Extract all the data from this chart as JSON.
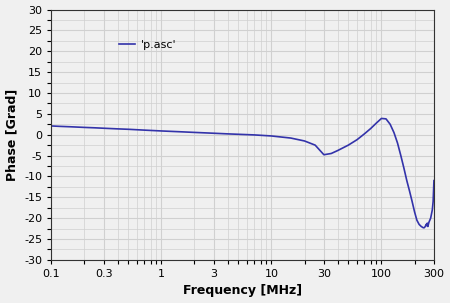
{
  "title": "",
  "xlabel": "Frequency [MHz]",
  "ylabel": "Phase [Grad]",
  "legend_label": "'p.asc'",
  "xmin": 0.1,
  "xmax": 300,
  "ymin": -30,
  "ymax": 30,
  "yticks": [
    -30,
    -25,
    -20,
    -15,
    -10,
    -5,
    0,
    5,
    10,
    15,
    20,
    25,
    30
  ],
  "xticks": [
    0.1,
    0.3,
    1,
    3,
    10,
    30,
    100,
    300
  ],
  "xtick_labels": [
    "0.1",
    "0.3",
    "1",
    "3",
    "10",
    "30",
    "100",
    "300"
  ],
  "line_color": "#3333aa",
  "line_width": 1.2,
  "bg_color": "#f0f0f0",
  "plot_bg_color": "#f0f0f0",
  "grid_color": "#d0d0d0",
  "curve_x": [
    0.1,
    0.12,
    0.15,
    0.2,
    0.25,
    0.3,
    0.4,
    0.5,
    0.7,
    1.0,
    1.5,
    2.0,
    3.0,
    4.0,
    5.0,
    7.0,
    10.0,
    15.0,
    20.0,
    25.0,
    30.0,
    35.0,
    40.0,
    50.0,
    60.0,
    70.0,
    80.0,
    90.0,
    100.0,
    110.0,
    120.0,
    130.0,
    140.0,
    150.0,
    160.0,
    170.0,
    180.0,
    190.0,
    200.0,
    210.0,
    220.0,
    230.0,
    240.0,
    245.0,
    250.0,
    255.0,
    258.0,
    261.0,
    264.0,
    267.0,
    270.0,
    275.0,
    280.0,
    285.0,
    290.0,
    295.0,
    300.0
  ],
  "curve_y": [
    2.1,
    2.0,
    1.9,
    1.75,
    1.65,
    1.55,
    1.4,
    1.3,
    1.1,
    0.9,
    0.7,
    0.55,
    0.35,
    0.2,
    0.1,
    -0.05,
    -0.3,
    -0.8,
    -1.5,
    -2.5,
    -4.8,
    -4.5,
    -3.8,
    -2.5,
    -1.2,
    0.2,
    1.5,
    2.8,
    3.9,
    3.8,
    2.5,
    0.5,
    -2.0,
    -5.0,
    -8.0,
    -11.0,
    -13.5,
    -16.0,
    -18.5,
    -20.5,
    -21.5,
    -22.0,
    -22.3,
    -22.3,
    -22.0,
    -21.5,
    -21.8,
    -21.2,
    -22.0,
    -21.5,
    -21.0,
    -20.5,
    -20.0,
    -19.0,
    -18.0,
    -16.0,
    -11.0
  ]
}
